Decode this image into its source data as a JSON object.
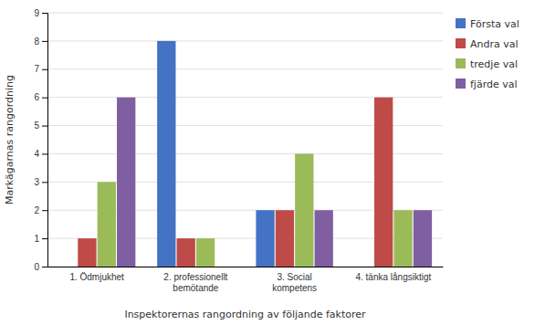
{
  "chart_data": {
    "type": "bar",
    "xlabel": "Inspektorernas rangordning av följande faktorer",
    "ylabel": "Markägarnas rangordning",
    "categories": [
      "1. Ödmjukhet",
      "2. professionellt\nbemötande",
      "3. Social\nkompetens",
      "4. tänka långsiktigt"
    ],
    "series": [
      {
        "name": "Första val",
        "color": "#4472C4",
        "values": [
          0,
          8,
          2,
          0
        ]
      },
      {
        "name": "Andra val",
        "color": "#BE4B48",
        "values": [
          1,
          1,
          2,
          6
        ]
      },
      {
        "name": "tredje val",
        "color": "#9BBB59",
        "values": [
          3,
          1,
          4,
          2
        ]
      },
      {
        "name": "fjärde val",
        "color": "#7F5FA2",
        "values": [
          6,
          0,
          2,
          2
        ]
      }
    ],
    "ylim": [
      0,
      9
    ],
    "yticks": [
      0,
      1,
      2,
      3,
      4,
      5,
      6,
      7,
      8,
      9
    ],
    "grid": true,
    "legend": "right"
  }
}
